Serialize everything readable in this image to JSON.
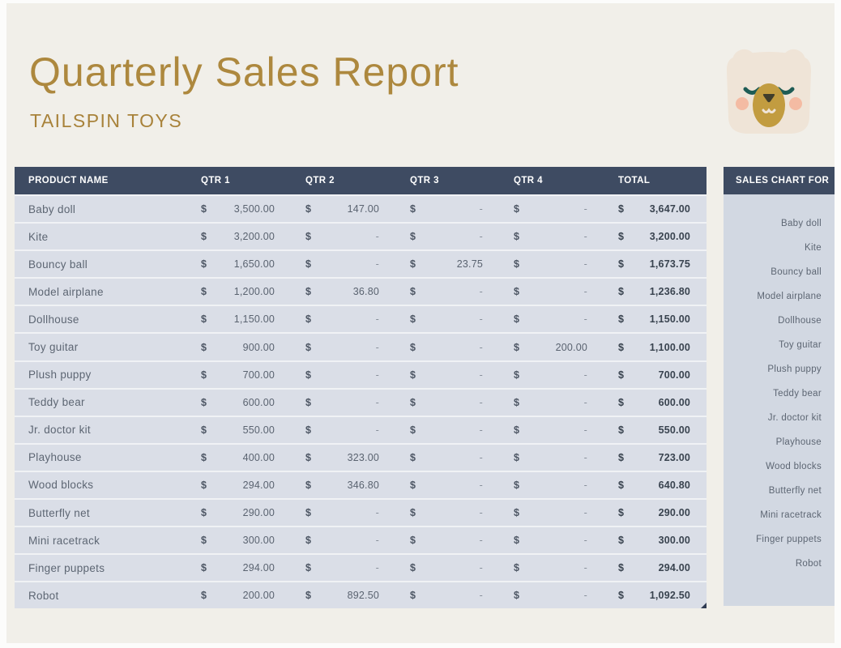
{
  "header": {
    "title": "Quarterly Sales Report",
    "subtitle": "TAILSPIN TOYS"
  },
  "currency_symbol": "$",
  "table": {
    "columns": [
      "PRODUCT NAME",
      "QTR 1",
      "QTR 2",
      "QTR 3",
      "QTR 4",
      "TOTAL"
    ],
    "rows": [
      {
        "name": "Baby doll",
        "q1": "3,500.00",
        "q2": "147.00",
        "q3": "-",
        "q4": "-",
        "total": "3,647.00"
      },
      {
        "name": "Kite",
        "q1": "3,200.00",
        "q2": "-",
        "q3": "-",
        "q4": "-",
        "total": "3,200.00"
      },
      {
        "name": "Bouncy ball",
        "q1": "1,650.00",
        "q2": "-",
        "q3": "23.75",
        "q4": "-",
        "total": "1,673.75"
      },
      {
        "name": "Model airplane",
        "q1": "1,200.00",
        "q2": "36.80",
        "q3": "-",
        "q4": "-",
        "total": "1,236.80"
      },
      {
        "name": "Dollhouse",
        "q1": "1,150.00",
        "q2": "-",
        "q3": "-",
        "q4": "-",
        "total": "1,150.00"
      },
      {
        "name": "Toy guitar",
        "q1": "900.00",
        "q2": "-",
        "q3": "-",
        "q4": "200.00",
        "total": "1,100.00"
      },
      {
        "name": "Plush puppy",
        "q1": "700.00",
        "q2": "-",
        "q3": "-",
        "q4": "-",
        "total": "700.00"
      },
      {
        "name": "Teddy bear",
        "q1": "600.00",
        "q2": "-",
        "q3": "-",
        "q4": "-",
        "total": "600.00"
      },
      {
        "name": "Jr. doctor kit",
        "q1": "550.00",
        "q2": "-",
        "q3": "-",
        "q4": "-",
        "total": "550.00"
      },
      {
        "name": "Playhouse",
        "q1": "400.00",
        "q2": "323.00",
        "q3": "-",
        "q4": "-",
        "total": "723.00"
      },
      {
        "name": "Wood blocks",
        "q1": "294.00",
        "q2": "346.80",
        "q3": "-",
        "q4": "-",
        "total": "640.80"
      },
      {
        "name": "Butterfly net",
        "q1": "290.00",
        "q2": "-",
        "q3": "-",
        "q4": "-",
        "total": "290.00"
      },
      {
        "name": "Mini racetrack",
        "q1": "300.00",
        "q2": "-",
        "q3": "-",
        "q4": "-",
        "total": "300.00"
      },
      {
        "name": "Finger puppets",
        "q1": "294.00",
        "q2": "-",
        "q3": "-",
        "q4": "-",
        "total": "294.00"
      },
      {
        "name": "Robot",
        "q1": "200.00",
        "q2": "892.50",
        "q3": "-",
        "q4": "-",
        "total": "1,092.50"
      }
    ]
  },
  "sidebar": {
    "title": "SALES CHART FOR",
    "items": [
      "Baby doll",
      "Kite",
      "Bouncy ball",
      "Model airplane",
      "Dollhouse",
      "Toy guitar",
      "Plush puppy",
      "Teddy bear",
      "Jr. doctor kit",
      "Playhouse",
      "Wood blocks",
      "Butterfly net",
      "Mini racetrack",
      "Finger puppets",
      "Robot"
    ]
  },
  "icons": {
    "mascot": "bear-mascot-icon"
  },
  "colors": {
    "accent_gold": "#AD883E",
    "header_slate": "#3E4B62",
    "row_bg": "#DADEE7",
    "sidebar_bg": "#D2D8E2",
    "canvas_beige": "#F1EFE9",
    "bear_face": "#EFE4D7",
    "bear_ear": "#1E5C55",
    "bear_muzzle": "#C29C40",
    "bear_cheek": "#F4BBA3"
  }
}
